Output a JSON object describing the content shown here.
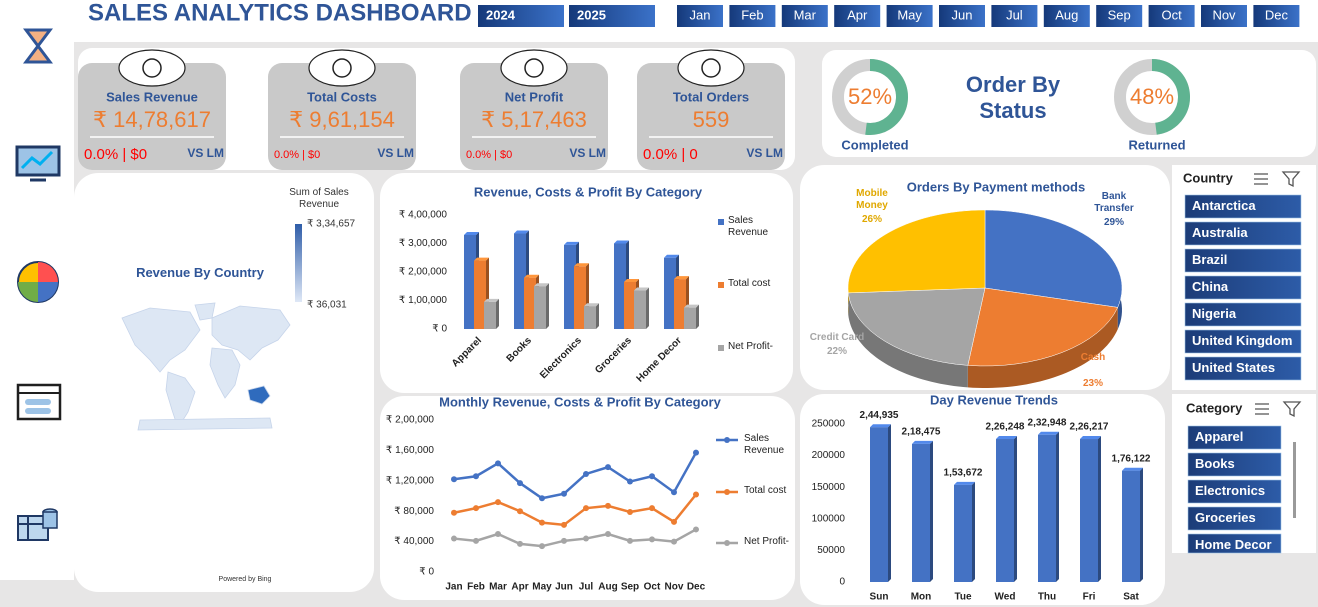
{
  "header": {
    "title": "SALES ANALYTICS DASHBOARD",
    "years": [
      "2024",
      "2025"
    ],
    "months": [
      "Jan",
      "Feb",
      "Mar",
      "Apr",
      "May",
      "Jun",
      "Jul",
      "Aug",
      "Sep",
      "Oct",
      "Nov",
      "Dec"
    ]
  },
  "kpis": [
    {
      "title": "Sales Revenue",
      "value": "₹ 14,78,617",
      "change": "0.0% | $0",
      "compare": "VS LM"
    },
    {
      "title": "Total Costs",
      "value": "₹ 9,61,154",
      "change": "0.0% | $0",
      "compare": "VS LM"
    },
    {
      "title": "Net Profit",
      "value": "₹ 5,17,463",
      "change": "0.0% | $0",
      "compare": "VS LM"
    },
    {
      "title": "Total Orders",
      "value": "559",
      "change": "0.0% | 0",
      "compare": "VS LM"
    }
  ],
  "order_status": {
    "title": "Order By Status"
  },
  "slicers": [
    {
      "title": "Country",
      "items": [
        "Antarctica",
        "Australia",
        "Brazil",
        "China",
        "Nigeria",
        "United Kingdom",
        "United States"
      ]
    },
    {
      "title": "Category",
      "items": [
        "Apparel",
        "Books",
        "Electronics",
        "Groceries",
        "Home Decor"
      ]
    }
  ],
  "chart_data": [
    {
      "type": "map",
      "title": "Revenue By Country",
      "legend_title": "Sum of Sales Revenue",
      "scale": [
        {
          "value": 334657,
          "label": "₹ 3,34,657"
        },
        {
          "value": 36031,
          "label": "₹ 36,031"
        }
      ],
      "credit": "Powered by Bing"
    },
    {
      "type": "bar",
      "title": "Revenue, Costs & Profit By Category",
      "categories": [
        "Apparel",
        "Books",
        "Electronics",
        "Groceries",
        "Home Decor"
      ],
      "series": [
        {
          "name": "Sales Revenue",
          "color": "#4472c4",
          "values": [
            330000,
            335000,
            295000,
            300000,
            250000
          ]
        },
        {
          "name": "Total cost",
          "color": "#ed7d31",
          "values": [
            240000,
            180000,
            220000,
            165000,
            175000
          ]
        },
        {
          "name": "Net Profit-",
          "color": "#a5a5a5",
          "values": [
            95000,
            150000,
            80000,
            135000,
            75000
          ]
        }
      ],
      "ylim": [
        0,
        400000
      ],
      "yticks": [
        {
          "value": 0,
          "label": "₹ 0"
        },
        {
          "value": 100000,
          "label": "₹ 1,00,000"
        },
        {
          "value": 200000,
          "label": "₹ 2,00,000"
        },
        {
          "value": 300000,
          "label": "₹ 3,00,000"
        },
        {
          "value": 400000,
          "label": "₹ 4,00,000"
        }
      ],
      "grid": false
    },
    {
      "type": "line",
      "title": "Monthly Revenue, Costs & Profit By Category",
      "categories": [
        "Jan",
        "Feb",
        "Mar",
        "Apr",
        "May",
        "Jun",
        "Jul",
        "Aug",
        "Sep",
        "Oct",
        "Nov",
        "Dec"
      ],
      "series": [
        {
          "name": "Sales Revenue",
          "color": "#4472c4",
          "values": [
            122000,
            126000,
            143000,
            117000,
            97000,
            103000,
            129000,
            138000,
            119000,
            126000,
            105000,
            157000
          ]
        },
        {
          "name": "Total cost",
          "color": "#ed7d31",
          "values": [
            78000,
            84000,
            92000,
            80000,
            65000,
            62000,
            84000,
            87000,
            79000,
            84000,
            66000,
            102000
          ]
        },
        {
          "name": "Net Profit-",
          "color": "#a5a5a5",
          "values": [
            44000,
            41000,
            50000,
            37000,
            34000,
            41000,
            44000,
            50000,
            41000,
            43000,
            40000,
            56000
          ]
        }
      ],
      "ylim": [
        0,
        200000
      ],
      "yticks": [
        {
          "value": 0,
          "label": "₹ 0"
        },
        {
          "value": 40000,
          "label": "₹ 40,000"
        },
        {
          "value": 80000,
          "label": "₹ 80,000"
        },
        {
          "value": 120000,
          "label": "₹ 1,20,000"
        },
        {
          "value": 160000,
          "label": "₹ 1,60,000"
        },
        {
          "value": 200000,
          "label": "₹ 2,00,000"
        }
      ],
      "grid": false
    },
    {
      "type": "pie",
      "title": "Orders By Payment methods",
      "categories": [
        "Bank Transfer",
        "Cash",
        "Credit Card",
        "Mobile Money"
      ],
      "values": [
        29,
        23,
        22,
        26
      ],
      "value_labels": [
        "29%",
        "23%",
        "22%",
        "26%"
      ],
      "colors": [
        "#4472c4",
        "#ed7d31",
        "#a5a5a5",
        "#ffc000"
      ]
    },
    {
      "type": "bar",
      "title": "Day Revenue Trends",
      "categories": [
        "Sun",
        "Mon",
        "Tue",
        "Wed",
        "Thu",
        "Fri",
        "Sat"
      ],
      "values": [
        244935,
        218475,
        153672,
        226248,
        232948,
        226217,
        176122
      ],
      "value_labels": [
        "2,44,935",
        "2,18,475",
        "1,53,672",
        "2,26,248",
        "2,32,948",
        "2,26,217",
        "1,76,122"
      ],
      "color": "#4472c4",
      "ylim": [
        0,
        250000
      ],
      "yticks": [
        0,
        50000,
        100000,
        150000,
        200000,
        250000
      ],
      "grid": false
    },
    {
      "type": "donut",
      "categories": [
        "Completed"
      ],
      "values": [
        52
      ],
      "value_labels": [
        "52%"
      ],
      "color": "#5fb391"
    },
    {
      "type": "donut",
      "categories": [
        "Returned"
      ],
      "values": [
        48
      ],
      "value_labels": [
        "48%"
      ],
      "color": "#5fb391"
    }
  ]
}
